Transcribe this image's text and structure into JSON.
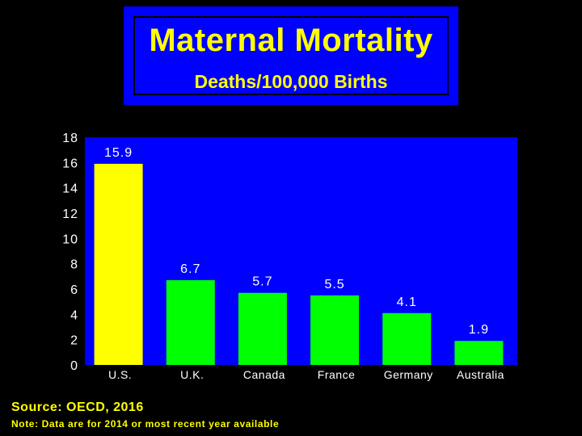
{
  "source": "Source: OECD, 2016",
  "note": "Note: Data are for 2014 or most recent year available",
  "colors": {
    "background": "#000000",
    "plot_bg": "#0000ff",
    "text": "#ffff00",
    "axis_text": "#ffffff",
    "highlight_bar": "#ffff00",
    "bar": "#00ff00"
  },
  "chart_data": {
    "type": "bar",
    "title": "Maternal Mortality",
    "subtitle": "Deaths/100,000 Births",
    "xlabel": "",
    "ylabel": "",
    "categories": [
      "U.S.",
      "U.K.",
      "Canada",
      "France",
      "Germany",
      "Australia"
    ],
    "values": [
      15.9,
      6.7,
      5.7,
      5.5,
      4.1,
      1.9
    ],
    "value_labels": [
      "15.9",
      "6.7",
      "5.7",
      "5.5",
      "4.1",
      "1.9"
    ],
    "highlight_index": 0,
    "ylim": [
      0,
      18
    ],
    "yticks": [
      0,
      2,
      4,
      6,
      8,
      10,
      12,
      14,
      16,
      18
    ],
    "grid": false,
    "legend": "none"
  }
}
